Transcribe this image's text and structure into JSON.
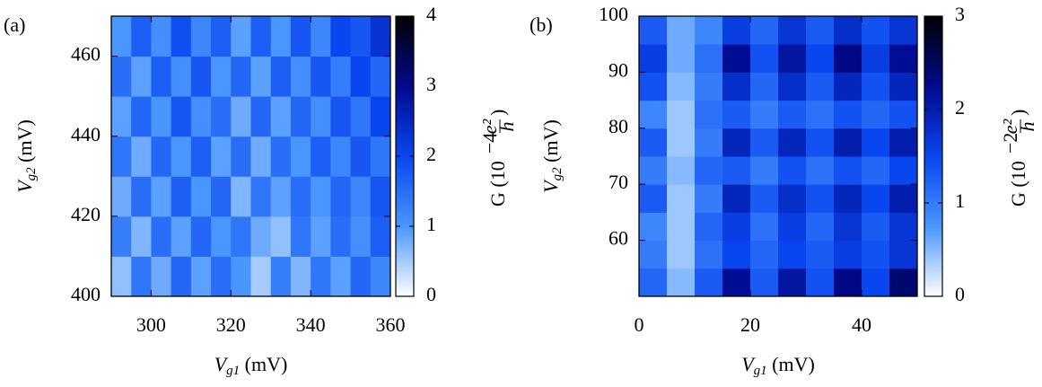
{
  "chart_data": [
    {
      "type": "heatmap",
      "panel_label": "(a)",
      "xlabel": {
        "symbol": "V",
        "sub": "g1",
        "unit": "(mV)"
      },
      "ylabel": {
        "symbol": "V",
        "sub": "g2",
        "unit": "(mV)"
      },
      "cbar_label": {
        "text": "G (10",
        "exp": "−4",
        "num": "e²",
        "den": "h",
        "close": ")"
      },
      "x": [
        292.5,
        297.5,
        302.5,
        307.5,
        312.5,
        317.5,
        322.5,
        327.5,
        332.5,
        337.5,
        342.5,
        347.5,
        352.5,
        357.5
      ],
      "y": [
        405,
        415,
        425,
        435,
        445,
        455,
        465
      ],
      "z": [
        [
          0.6,
          1.4,
          0.8,
          1.6,
          0.9,
          1.5,
          1.0,
          0.5,
          1.3,
          0.7,
          1.4,
          0.9,
          1.6,
          1.2
        ],
        [
          1.3,
          0.7,
          1.5,
          0.9,
          1.6,
          1.0,
          1.4,
          0.8,
          0.6,
          1.4,
          0.9,
          1.5,
          1.1,
          1.7
        ],
        [
          0.8,
          1.5,
          0.9,
          1.7,
          1.0,
          1.6,
          0.7,
          1.4,
          0.9,
          1.5,
          1.0,
          1.6,
          1.2,
          1.8
        ],
        [
          1.4,
          0.8,
          1.6,
          1.0,
          1.7,
          0.9,
          1.5,
          0.8,
          1.5,
          1.0,
          1.7,
          1.2,
          1.8,
          1.4
        ],
        [
          0.9,
          1.6,
          1.0,
          1.8,
          1.1,
          1.5,
          0.8,
          1.6,
          0.9,
          1.6,
          1.1,
          1.8,
          1.4,
          2.0
        ],
        [
          1.5,
          0.9,
          1.7,
          1.1,
          1.8,
          1.0,
          1.6,
          0.9,
          1.7,
          1.1,
          1.8,
          1.3,
          2.0,
          1.6
        ],
        [
          1.0,
          1.7,
          1.1,
          1.9,
          1.2,
          1.7,
          0.9,
          1.7,
          1.0,
          1.8,
          1.2,
          2.0,
          1.8,
          2.3
        ]
      ],
      "xlim": [
        290,
        360
      ],
      "xticks": [
        300,
        320,
        340,
        360
      ],
      "ylim": [
        400,
        470
      ],
      "yticks": [
        400,
        420,
        440,
        460
      ],
      "clim": [
        0,
        4
      ],
      "cticks": [
        0,
        1,
        2,
        3,
        4
      ],
      "colormap": [
        "#ffffff",
        "#4a96ff",
        "#0a46f0",
        "#000a8c",
        "#000000"
      ]
    },
    {
      "type": "heatmap",
      "panel_label": "(b)",
      "xlabel": {
        "symbol": "V",
        "sub": "g1",
        "unit": "(mV)"
      },
      "ylabel": {
        "symbol": "V",
        "sub": "g2",
        "unit": "(mV)"
      },
      "cbar_label": {
        "text": "G (10",
        "exp": "−2",
        "num": "e²",
        "den": "h",
        "close": ")"
      },
      "x": [
        2.5,
        7.5,
        12.5,
        17.5,
        22.5,
        27.5,
        32.5,
        37.5,
        42.5,
        47.5
      ],
      "y": [
        52.5,
        57.5,
        62.5,
        67.5,
        72.5,
        77.5,
        82.5,
        87.5,
        92.5,
        97.5
      ],
      "z": [
        [
          1.2,
          0.5,
          1.3,
          2.2,
          1.3,
          2.1,
          1.4,
          2.3,
          1.5,
          2.4
        ],
        [
          1.0,
          0.4,
          1.1,
          1.5,
          1.2,
          1.5,
          1.3,
          1.6,
          1.4,
          1.7
        ],
        [
          0.9,
          0.4,
          1.2,
          1.6,
          1.1,
          1.6,
          1.2,
          1.7,
          1.3,
          1.7
        ],
        [
          1.3,
          0.4,
          1.0,
          1.9,
          1.3,
          1.8,
          1.4,
          1.9,
          1.5,
          2.0
        ],
        [
          1.0,
          0.5,
          1.2,
          1.3,
          1.0,
          1.4,
          1.1,
          1.4,
          1.2,
          1.5
        ],
        [
          1.3,
          0.4,
          1.0,
          1.9,
          1.3,
          1.9,
          1.4,
          2.0,
          1.5,
          2.0
        ],
        [
          0.9,
          0.4,
          1.1,
          1.3,
          1.0,
          1.3,
          1.1,
          1.4,
          1.2,
          1.4
        ],
        [
          1.4,
          0.5,
          1.0,
          1.8,
          1.2,
          1.8,
          1.3,
          1.9,
          1.4,
          1.9
        ],
        [
          1.6,
          0.6,
          1.1,
          2.2,
          1.4,
          2.1,
          1.5,
          2.3,
          1.6,
          2.2
        ],
        [
          1.3,
          0.6,
          0.9,
          1.6,
          1.2,
          1.7,
          1.3,
          1.8,
          1.4,
          1.7
        ]
      ],
      "xlim": [
        0,
        50
      ],
      "xticks": [
        0,
        20,
        40
      ],
      "ylim": [
        50,
        100
      ],
      "yticks": [
        60,
        70,
        80,
        90,
        100
      ],
      "clim": [
        0,
        3
      ],
      "cticks": [
        0,
        1,
        2,
        3
      ],
      "colormap": [
        "#ffffff",
        "#4a96ff",
        "#0a46f0",
        "#000a8c",
        "#000000"
      ]
    }
  ]
}
